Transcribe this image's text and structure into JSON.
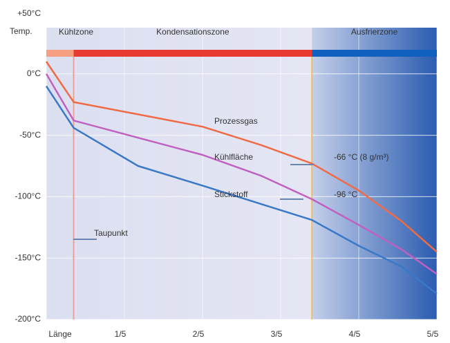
{
  "chart_data": {
    "type": "line",
    "y_label": "Temp.",
    "xlim": [
      0,
      1
    ],
    "xticks": [
      {
        "value": 0,
        "label": "Länge"
      },
      {
        "value": 0.2,
        "label": "1/5"
      },
      {
        "value": 0.4,
        "label": "2/5"
      },
      {
        "value": 0.6,
        "label": "3/5"
      },
      {
        "value": 0.8,
        "label": "4/5"
      },
      {
        "value": 1,
        "label": "5/5"
      }
    ],
    "ylim": [
      -200,
      50
    ],
    "yticks": [
      {
        "value": 50,
        "label": "+50°C"
      },
      {
        "value": 0,
        "label": "0°C"
      },
      {
        "value": -50,
        "label": "-50°C"
      },
      {
        "value": -100,
        "label": "-100°C"
      },
      {
        "value": -150,
        "label": "-150°C"
      },
      {
        "value": -200,
        "label": "-200°C"
      }
    ],
    "grid": true,
    "zones": [
      {
        "label": "Kühlzone",
        "start": 0,
        "end": 0.07,
        "color": "#f4a080"
      },
      {
        "label": "Kondensationszone",
        "start": 0.07,
        "end": 0.68,
        "color": "#e83a30"
      },
      {
        "label": "Ausfrierzone",
        "start": 0.68,
        "end": 1,
        "color": "#1060c0"
      }
    ],
    "x": [
      0,
      0.07,
      0.235,
      0.4,
      0.55,
      0.68,
      0.8,
      0.91,
      1
    ],
    "series": [
      {
        "name": "Prozessgas",
        "color": "#f06a45",
        "values": [
          10,
          -23,
          -33,
          -43,
          -58,
          -73,
          -95,
          -120,
          -145
        ]
      },
      {
        "name": "Kühlfläche",
        "color": "#c060c0",
        "values": [
          0,
          -38,
          -52,
          -66,
          -83,
          -102,
          -123,
          -143,
          -163
        ]
      },
      {
        "name": "Stickstoff",
        "color": "#3a78c8",
        "values": [
          -10,
          -44,
          -75,
          -91,
          -106,
          -119,
          -140,
          -157,
          -179
        ]
      }
    ],
    "annotations": [
      "-66 °C (8 g/m³)",
      "-96 °C",
      "Taupunkt"
    ]
  }
}
